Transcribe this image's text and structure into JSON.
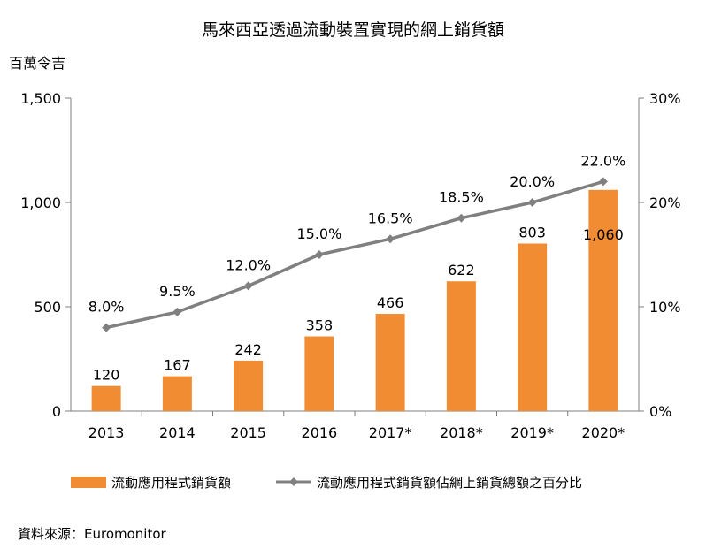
{
  "chart_data": {
    "type": "bar+line",
    "title": "馬來西亞透過流動裝置實現的網上銷貨額",
    "ylabel_left": "百萬令吉",
    "categories": [
      "2013",
      "2014",
      "2015",
      "2016",
      "2017*",
      "2018*",
      "2019*",
      "2020*"
    ],
    "bar_series": {
      "name": "流動應用程式銷貨額",
      "values": [
        120,
        167,
        242,
        358,
        466,
        622,
        803,
        1060
      ],
      "labels": [
        "120",
        "167",
        "242",
        "358",
        "466",
        "622",
        "803",
        "1,060"
      ],
      "color": "#F28C33"
    },
    "line_series": {
      "name": "流動應用程式銷貨額佔網上銷貨總額之百分比",
      "values": [
        8.0,
        9.5,
        12.0,
        15.0,
        16.5,
        18.5,
        20.0,
        22.0
      ],
      "labels": [
        "8.0%",
        "9.5%",
        "12.0%",
        "15.0%",
        "16.5%",
        "18.5%",
        "20.0%",
        "22.0%"
      ],
      "color": "#808080"
    },
    "y_left": {
      "range": [
        0,
        1500
      ],
      "ticks": [
        0,
        500,
        1000,
        1500
      ],
      "tick_labels": [
        "0",
        "500",
        "1,000",
        "1,500"
      ]
    },
    "y_right": {
      "range": [
        0,
        30
      ],
      "ticks": [
        0,
        10,
        20,
        30
      ],
      "tick_labels": [
        "0%",
        "10%",
        "20%",
        "30%"
      ]
    },
    "grid": false,
    "legend_position": "bottom"
  },
  "source": "資料來源：Euromonitor"
}
